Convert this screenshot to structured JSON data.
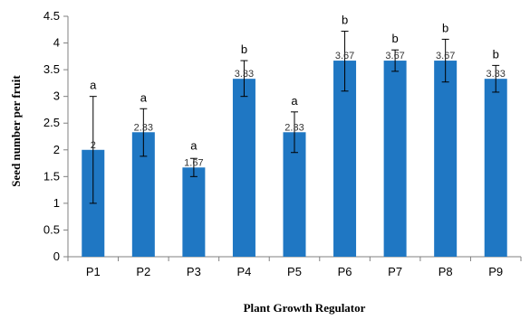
{
  "chart_data": {
    "type": "bar",
    "title": "",
    "xlabel": "Plant Growth Regulator",
    "ylabel": "Seed number per fruit",
    "ylim": [
      0,
      4.5
    ],
    "yticks": [
      0,
      0.5,
      1,
      1.5,
      2,
      2.5,
      3,
      3.5,
      4,
      4.5
    ],
    "ytick_labels": [
      "0",
      "0.5",
      "1",
      "1.5",
      "2",
      "2.5",
      "3",
      "3.5",
      "4",
      "4.5"
    ],
    "categories": [
      "P1",
      "P2",
      "P3",
      "P4",
      "P5",
      "P6",
      "P7",
      "P8",
      "P9"
    ],
    "values": [
      2,
      2.33,
      1.67,
      3.33,
      2.33,
      3.67,
      3.67,
      3.67,
      3.33
    ],
    "value_labels": [
      "2",
      "2.33",
      "1.67",
      "3.33",
      "2.33",
      "3.67",
      "3.67",
      "3.67",
      "3.33"
    ],
    "error_bars": [
      {
        "low": 1.0,
        "high": 3.0
      },
      {
        "low": 1.88,
        "high": 2.77
      },
      {
        "low": 1.5,
        "high": 1.84
      },
      {
        "low": 3.0,
        "high": 3.67
      },
      {
        "low": 1.95,
        "high": 2.71
      },
      {
        "low": 3.1,
        "high": 4.22
      },
      {
        "low": 3.47,
        "high": 3.87
      },
      {
        "low": 3.27,
        "high": 4.07
      },
      {
        "low": 3.08,
        "high": 3.58
      }
    ],
    "significance_letters": [
      "a",
      "a",
      "a",
      "b",
      "a",
      "b",
      "b",
      "b",
      "b"
    ],
    "bar_color": "#1f77c3",
    "grid": false,
    "legend": "none"
  }
}
